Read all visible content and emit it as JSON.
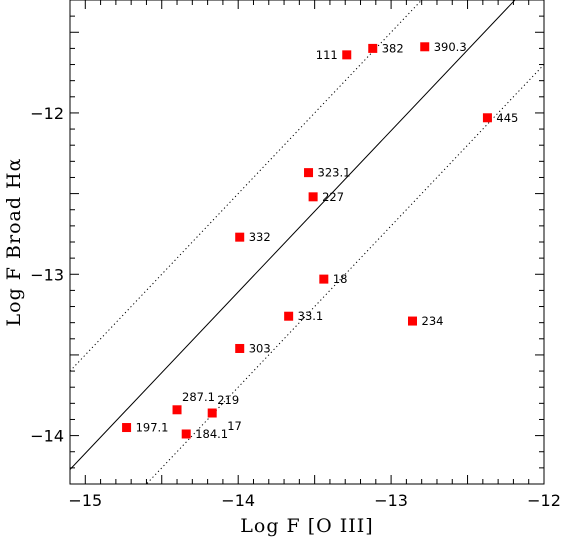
{
  "chart_data": {
    "type": "scatter",
    "xlabel": "Log F [O III]",
    "ylabel": "Log F Broad Hα",
    "xlim": [
      -15.1,
      -12
    ],
    "ylim": [
      -14.3,
      -11.3
    ],
    "xticks": [
      -15,
      -14,
      -13,
      -12
    ],
    "xtick_labels": [
      "−15",
      "−14",
      "−13",
      "−12"
    ],
    "yticks": [
      -14,
      -13,
      -12
    ],
    "ytick_labels": [
      "−14",
      "−13",
      "−12"
    ],
    "grid": false,
    "marker_color": "#ff0000",
    "points": [
      {
        "label": "111",
        "x": -13.29,
        "y": -11.64,
        "label_side": "left"
      },
      {
        "label": "382",
        "x": -13.12,
        "y": -11.6,
        "label_side": "right"
      },
      {
        "label": "390.3",
        "x": -12.78,
        "y": -11.59,
        "label_side": "right"
      },
      {
        "label": "445",
        "x": -12.37,
        "y": -12.03,
        "label_side": "right"
      },
      {
        "label": "323.1",
        "x": -13.54,
        "y": -12.37,
        "label_side": "right"
      },
      {
        "label": "227",
        "x": -13.51,
        "y": -12.52,
        "label_side": "right"
      },
      {
        "label": "332",
        "x": -13.99,
        "y": -12.77,
        "label_side": "right"
      },
      {
        "label": "18",
        "x": -13.44,
        "y": -13.03,
        "label_side": "right"
      },
      {
        "label": "33.1",
        "x": -13.67,
        "y": -13.26,
        "label_side": "right"
      },
      {
        "label": "234",
        "x": -12.86,
        "y": -13.29,
        "label_side": "right"
      },
      {
        "label": "303",
        "x": -13.99,
        "y": -13.46,
        "label_side": "right"
      },
      {
        "label": "287.1",
        "x": -14.4,
        "y": -13.84,
        "label_side": "above-right"
      },
      {
        "label": "219",
        "x": -14.17,
        "y": -13.86,
        "label_side": "above-right"
      },
      {
        "label": "17",
        "x": -14.17,
        "y": -13.86,
        "label_side": "below-right"
      },
      {
        "label": "197.1",
        "x": -14.73,
        "y": -13.95,
        "label_side": "right"
      },
      {
        "label": "184.1",
        "x": -14.34,
        "y": -13.99,
        "label_side": "right"
      }
    ],
    "lines": [
      {
        "name": "fit",
        "style": "solid",
        "slope": 1,
        "intercept": 0.89
      },
      {
        "name": "upper",
        "style": "dotted",
        "slope": 1,
        "intercept": 1.5
      },
      {
        "name": "lower",
        "style": "dotted",
        "slope": 1,
        "intercept": 0.3
      }
    ]
  }
}
